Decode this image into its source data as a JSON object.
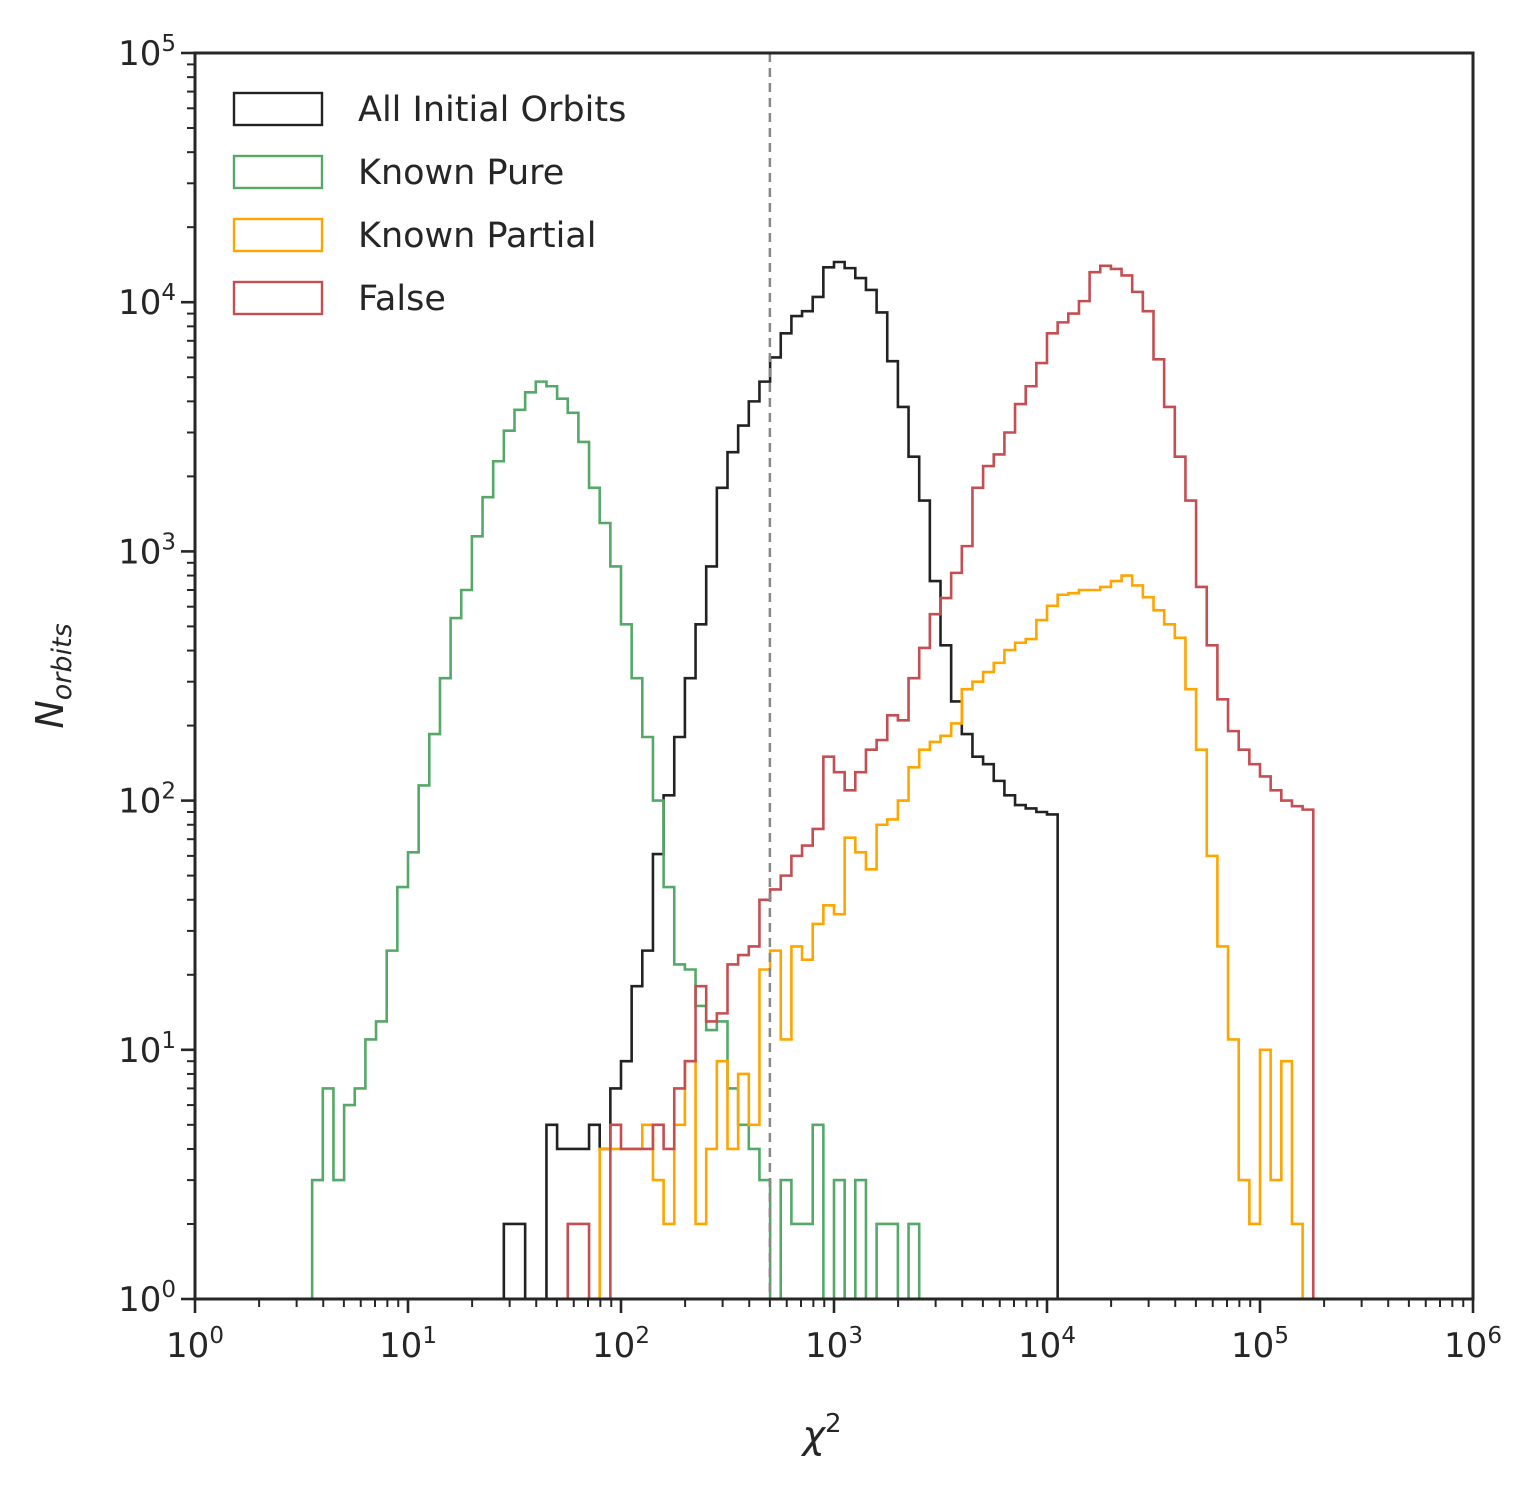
{
  "chart_data": {
    "type": "histogram-step",
    "xlabel": {
      "base": "χ",
      "sup": "2"
    },
    "ylabel": {
      "base": "N",
      "sub": "orbits"
    },
    "xscale": "log",
    "yscale": "log",
    "xlim": [
      1,
      1000000
    ],
    "ylim": [
      1,
      100000
    ],
    "x_ticks": [
      {
        "base": "10",
        "exp": "0"
      },
      {
        "base": "10",
        "exp": "1"
      },
      {
        "base": "10",
        "exp": "2"
      },
      {
        "base": "10",
        "exp": "3"
      },
      {
        "base": "10",
        "exp": "4"
      },
      {
        "base": "10",
        "exp": "5"
      },
      {
        "base": "10",
        "exp": "6"
      }
    ],
    "y_ticks": [
      {
        "base": "10",
        "exp": "0"
      },
      {
        "base": "10",
        "exp": "1"
      },
      {
        "base": "10",
        "exp": "2"
      },
      {
        "base": "10",
        "exp": "3"
      },
      {
        "base": "10",
        "exp": "4"
      },
      {
        "base": "10",
        "exp": "5"
      }
    ],
    "grid": false,
    "legend_position": "top-left",
    "threshold_line": {
      "x": 500,
      "style": "dashed",
      "color": "#888888"
    },
    "bins": {
      "start": 1,
      "stop": 1000000,
      "count": 120
    },
    "series": [
      {
        "name": "All Initial Orbits",
        "color": "#222222",
        "start_bin": 29,
        "values": [
          2,
          2,
          0,
          0,
          5,
          4,
          4,
          4,
          5,
          4,
          7,
          9,
          18,
          25,
          61,
          105,
          180,
          310,
          510,
          870,
          1800,
          2500,
          3200,
          4000,
          4800,
          6000,
          7500,
          8800,
          9200,
          10500,
          13800,
          14500,
          13700,
          12500,
          11200,
          9100,
          5800,
          3800,
          2400,
          1600,
          760,
          420,
          250,
          185,
          150,
          140,
          120,
          105,
          96,
          93,
          90,
          88
        ]
      },
      {
        "name": "Known Pure",
        "color": "#55a868",
        "start_bin": 11,
        "values": [
          3,
          7,
          3,
          6,
          7,
          11,
          13,
          25,
          45,
          62,
          115,
          185,
          310,
          540,
          700,
          1150,
          1650,
          2300,
          3050,
          3700,
          4350,
          4800,
          4600,
          4100,
          3600,
          2750,
          1800,
          1300,
          870,
          510,
          310,
          180,
          100,
          45,
          22,
          21,
          15,
          12,
          13,
          7,
          5,
          4,
          3,
          1,
          3,
          2,
          2,
          5,
          1,
          3,
          1,
          3,
          1,
          2,
          2,
          1,
          2
        ]
      },
      {
        "name": "Known Partial",
        "color": "#ffa500",
        "start_bin": 38,
        "values": [
          4,
          4,
          4,
          4,
          5,
          3,
          2,
          5,
          9,
          2,
          4,
          9,
          4,
          8,
          5,
          21,
          25,
          11,
          26,
          23,
          32,
          38,
          35,
          71,
          62,
          53,
          80,
          84,
          100,
          136,
          160,
          172,
          182,
          204,
          280,
          300,
          328,
          357,
          402,
          430,
          445,
          530,
          605,
          670,
          680,
          700,
          700,
          720,
          760,
          800,
          730,
          655,
          580,
          510,
          450,
          280,
          160,
          60,
          26,
          11,
          3,
          2,
          10,
          3,
          9,
          2,
          1
        ]
      },
      {
        "name": "False",
        "color": "#c44e52",
        "start_bin": 35,
        "values": [
          2,
          2,
          0,
          0,
          5,
          4,
          4,
          4,
          5,
          4,
          7,
          9,
          18,
          13,
          14,
          22,
          24,
          26,
          40,
          44,
          50,
          60,
          66,
          77,
          150,
          130,
          110,
          130,
          160,
          175,
          220,
          210,
          310,
          410,
          560,
          650,
          820,
          1050,
          1800,
          2200,
          2450,
          3000,
          3900,
          4600,
          5700,
          7500,
          8300,
          9000,
          10100,
          13200,
          14000,
          13600,
          12800,
          11000,
          9200,
          5900,
          3800,
          2400,
          1600,
          720,
          420,
          255,
          190,
          160,
          140,
          125,
          110,
          100,
          95,
          92
        ]
      }
    ]
  }
}
